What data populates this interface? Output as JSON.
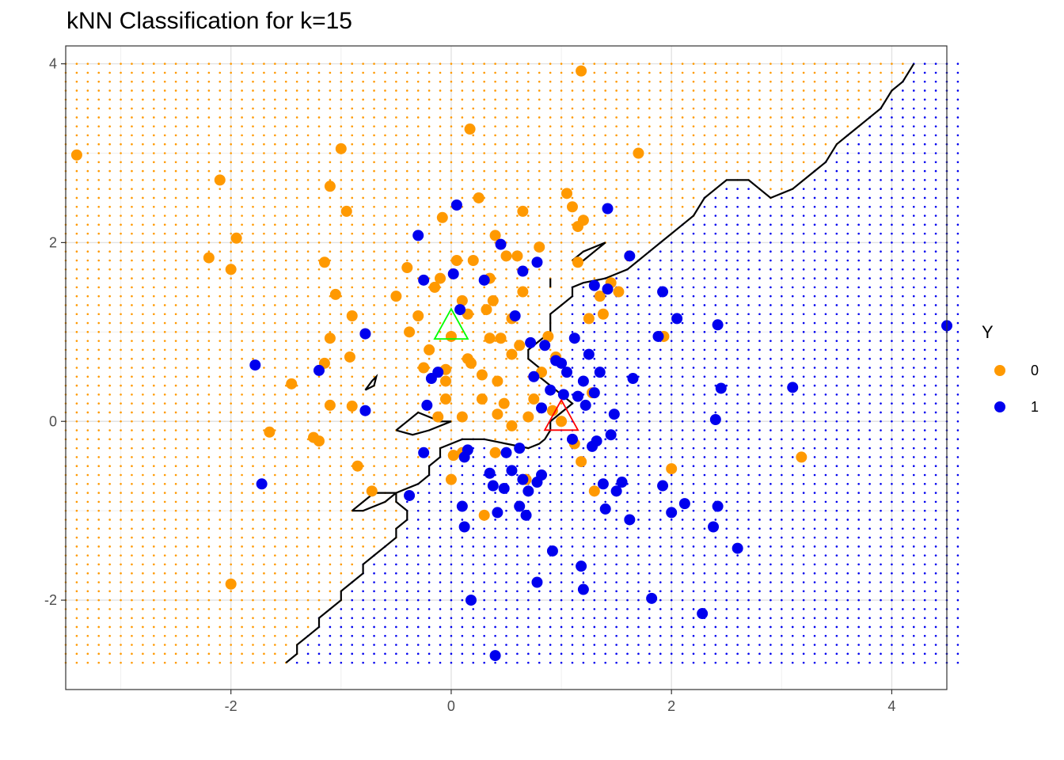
{
  "chart_data": {
    "type": "scatter",
    "title": "kNN Classification for k=15",
    "xlim": [
      -3.5,
      4.5
    ],
    "ylim": [
      -3.0,
      4.2
    ],
    "x_ticks": [
      -2,
      0,
      2,
      4
    ],
    "y_ticks": [
      -2,
      0,
      2,
      4
    ],
    "x_tick_labels": [
      "-2",
      "0",
      "2",
      "4"
    ],
    "y_tick_labels": [
      "-2",
      "0",
      "2",
      "4"
    ],
    "grid": true,
    "legend": {
      "title": "Y",
      "position": "right",
      "entries": [
        {
          "label": "0",
          "color": "#ff9900"
        },
        {
          "label": "1",
          "color": "#0000ee"
        }
      ]
    },
    "background_grid": {
      "x_range": [
        -3.5,
        4.6
      ],
      "y_range": [
        -2.7,
        4.0
      ],
      "step": 0.1,
      "class_0_color": "#ff9900",
      "class_1_color": "#0000ee"
    },
    "decision_boundary": [
      [
        -1.5,
        -2.7
      ],
      [
        -1.4,
        -2.6
      ],
      [
        -1.4,
        -2.5
      ],
      [
        -1.3,
        -2.4
      ],
      [
        -1.2,
        -2.3
      ],
      [
        -1.2,
        -2.2
      ],
      [
        -1.1,
        -2.1
      ],
      [
        -1.0,
        -2.0
      ],
      [
        -1.0,
        -1.9
      ],
      [
        -0.9,
        -1.8
      ],
      [
        -0.8,
        -1.7
      ],
      [
        -0.8,
        -1.6
      ],
      [
        -0.7,
        -1.5
      ],
      [
        -0.6,
        -1.4
      ],
      [
        -0.5,
        -1.3
      ],
      [
        -0.5,
        -1.2
      ],
      [
        -0.4,
        -1.1
      ],
      [
        -0.4,
        -1.0
      ],
      [
        -0.5,
        -0.9
      ],
      [
        -0.5,
        -0.8
      ],
      [
        -0.4,
        -0.75
      ],
      [
        -0.3,
        -0.7
      ],
      [
        -0.2,
        -0.6
      ],
      [
        -0.2,
        -0.5
      ],
      [
        -0.1,
        -0.4
      ],
      [
        -0.1,
        -0.3
      ],
      [
        0.0,
        -0.25
      ],
      [
        0.1,
        -0.2
      ],
      [
        0.3,
        -0.2
      ],
      [
        0.5,
        -0.25
      ],
      [
        0.7,
        -0.3
      ],
      [
        0.8,
        -0.25
      ],
      [
        0.85,
        -0.2
      ],
      [
        0.9,
        -0.1
      ],
      [
        0.9,
        0.0
      ],
      [
        1.0,
        0.1
      ],
      [
        1.1,
        0.2
      ],
      [
        1.0,
        0.3
      ],
      [
        0.9,
        0.4
      ],
      [
        0.8,
        0.5
      ],
      [
        0.8,
        0.6
      ],
      [
        0.7,
        0.7
      ],
      [
        0.7,
        0.8
      ],
      [
        0.8,
        0.9
      ],
      [
        0.9,
        1.0
      ],
      [
        0.9,
        1.2
      ],
      [
        1.0,
        1.3
      ],
      [
        1.1,
        1.4
      ],
      [
        1.1,
        1.5
      ],
      [
        1.2,
        1.55
      ],
      [
        1.4,
        1.6
      ],
      [
        1.6,
        1.7
      ],
      [
        1.7,
        1.8
      ],
      [
        1.8,
        1.9
      ],
      [
        1.9,
        2.0
      ],
      [
        2.0,
        2.1
      ],
      [
        2.1,
        2.2
      ],
      [
        2.2,
        2.3
      ],
      [
        2.3,
        2.5
      ],
      [
        2.4,
        2.6
      ],
      [
        2.5,
        2.7
      ],
      [
        2.7,
        2.7
      ],
      [
        2.8,
        2.6
      ],
      [
        2.9,
        2.5
      ],
      [
        3.1,
        2.6
      ],
      [
        3.2,
        2.7
      ],
      [
        3.3,
        2.8
      ],
      [
        3.4,
        2.9
      ],
      [
        3.5,
        3.1
      ],
      [
        3.6,
        3.2
      ],
      [
        3.7,
        3.3
      ],
      [
        3.8,
        3.4
      ],
      [
        3.9,
        3.5
      ],
      [
        4.0,
        3.7
      ],
      [
        4.1,
        3.8
      ],
      [
        4.2,
        4.0
      ]
    ],
    "boundary_islands": [
      [
        [
          -0.5,
          -0.1
        ],
        [
          -0.4,
          0.0
        ],
        [
          -0.3,
          0.1
        ],
        [
          -0.1,
          0.0
        ],
        [
          0.0,
          0.0
        ],
        [
          -0.2,
          -0.1
        ],
        [
          -0.35,
          -0.15
        ],
        [
          -0.5,
          -0.1
        ]
      ],
      [
        [
          -0.9,
          -1.0
        ],
        [
          -0.7,
          -0.8
        ],
        [
          -0.5,
          -0.8
        ],
        [
          -0.6,
          -0.9
        ],
        [
          -0.8,
          -1.0
        ],
        [
          -0.9,
          -1.0
        ]
      ],
      [
        [
          -0.78,
          0.35
        ],
        [
          -0.72,
          0.45
        ],
        [
          -0.68,
          0.5
        ],
        [
          -0.7,
          0.4
        ],
        [
          -0.78,
          0.35
        ]
      ],
      [
        [
          1.1,
          1.8
        ],
        [
          1.2,
          1.9
        ],
        [
          1.4,
          2.0
        ],
        [
          1.3,
          1.9
        ],
        [
          1.2,
          1.8
        ],
        [
          1.1,
          1.8
        ]
      ],
      [
        [
          0.9,
          1.5
        ],
        [
          0.9,
          1.6
        ]
      ]
    ],
    "series": [
      {
        "name": "0",
        "color": "#ff9900",
        "points": [
          [
            -3.4,
            2.98
          ],
          [
            -2.2,
            1.83
          ],
          [
            -2.1,
            2.7
          ],
          [
            -2.0,
            1.7
          ],
          [
            -1.95,
            2.05
          ],
          [
            -2.0,
            -1.82
          ],
          [
            -1.65,
            -0.12
          ],
          [
            -1.45,
            0.42
          ],
          [
            -1.25,
            -0.18
          ],
          [
            -1.2,
            -0.22
          ],
          [
            -1.15,
            1.78
          ],
          [
            -1.1,
            2.63
          ],
          [
            -1.1,
            0.93
          ],
          [
            -1.1,
            0.18
          ],
          [
            -1.15,
            0.65
          ],
          [
            -1.05,
            1.42
          ],
          [
            -1.0,
            3.05
          ],
          [
            -0.95,
            2.35
          ],
          [
            -0.9,
            1.18
          ],
          [
            -0.92,
            0.72
          ],
          [
            -0.9,
            0.17
          ],
          [
            -0.85,
            -0.5
          ],
          [
            -0.78,
            0.98
          ],
          [
            -0.72,
            -0.78
          ],
          [
            -0.5,
            1.4
          ],
          [
            -0.4,
            1.72
          ],
          [
            -0.38,
            1.0
          ],
          [
            -0.3,
            1.18
          ],
          [
            -0.25,
            0.6
          ],
          [
            -0.2,
            0.8
          ],
          [
            -0.15,
            1.5
          ],
          [
            -0.1,
            1.6
          ],
          [
            -0.08,
            2.28
          ],
          [
            -0.05,
            0.25
          ],
          [
            -0.05,
            0.45
          ],
          [
            0.05,
            1.8
          ],
          [
            0.1,
            1.35
          ],
          [
            0.15,
            1.2
          ],
          [
            0.15,
            0.7
          ],
          [
            0.2,
            1.8
          ],
          [
            0.25,
            2.5
          ],
          [
            0.28,
            0.52
          ],
          [
            0.32,
            1.25
          ],
          [
            0.35,
            1.6
          ],
          [
            0.38,
            1.35
          ],
          [
            0.4,
            2.08
          ],
          [
            0.45,
            0.93
          ],
          [
            0.5,
            1.85
          ],
          [
            0.55,
            0.75
          ],
          [
            0.6,
            1.85
          ],
          [
            0.65,
            1.45
          ],
          [
            0.65,
            2.35
          ],
          [
            0.7,
            0.05
          ],
          [
            0.75,
            0.25
          ],
          [
            0.8,
            1.95
          ],
          [
            0.82,
            0.55
          ],
          [
            0.88,
            0.95
          ],
          [
            0.95,
            0.72
          ],
          [
            1.0,
            0.0
          ],
          [
            1.05,
            2.55
          ],
          [
            1.1,
            2.4
          ],
          [
            1.15,
            2.18
          ],
          [
            1.15,
            1.78
          ],
          [
            1.2,
            2.25
          ],
          [
            1.25,
            1.15
          ],
          [
            1.28,
            0.32
          ],
          [
            1.3,
            -0.78
          ],
          [
            1.35,
            1.4
          ],
          [
            1.38,
            1.2
          ],
          [
            1.45,
            1.55
          ],
          [
            1.52,
            1.45
          ],
          [
            1.18,
            3.92
          ],
          [
            1.7,
            3.0
          ],
          [
            0.17,
            3.27
          ],
          [
            1.93,
            0.95
          ],
          [
            2.0,
            -0.53
          ],
          [
            3.18,
            -0.4
          ],
          [
            0.4,
            -0.35
          ],
          [
            0.3,
            -1.05
          ],
          [
            0.0,
            -0.65
          ],
          [
            0.02,
            -0.38
          ],
          [
            0.1,
            -0.35
          ],
          [
            0.68,
            -0.65
          ],
          [
            1.18,
            -0.45
          ],
          [
            1.12,
            -0.25
          ],
          [
            0.0,
            0.95
          ],
          [
            0.55,
            1.15
          ],
          [
            0.62,
            0.85
          ],
          [
            -0.12,
            0.05
          ],
          [
            0.1,
            0.05
          ],
          [
            0.42,
            0.08
          ],
          [
            0.48,
            0.2
          ],
          [
            0.55,
            -0.05
          ],
          [
            0.92,
            0.12
          ],
          [
            0.35,
            0.93
          ],
          [
            0.18,
            0.65
          ],
          [
            0.42,
            0.45
          ],
          [
            -0.05,
            0.58
          ],
          [
            0.28,
            0.25
          ]
        ]
      },
      {
        "name": "1",
        "color": "#0000ee",
        "points": [
          [
            -1.78,
            0.63
          ],
          [
            -1.72,
            -0.7
          ],
          [
            -1.2,
            0.57
          ],
          [
            -0.78,
            0.98
          ],
          [
            -0.78,
            0.12
          ],
          [
            -0.38,
            -0.83
          ],
          [
            -0.3,
            2.08
          ],
          [
            -0.25,
            -0.35
          ],
          [
            -0.22,
            0.18
          ],
          [
            -0.18,
            0.48
          ],
          [
            -0.12,
            0.55
          ],
          [
            0.02,
            1.65
          ],
          [
            0.05,
            2.42
          ],
          [
            0.08,
            1.25
          ],
          [
            0.12,
            -0.4
          ],
          [
            0.15,
            -0.32
          ],
          [
            0.18,
            -2.0
          ],
          [
            0.1,
            -0.95
          ],
          [
            0.12,
            -1.18
          ],
          [
            0.3,
            1.58
          ],
          [
            0.35,
            -0.58
          ],
          [
            0.38,
            -0.72
          ],
          [
            0.4,
            -2.62
          ],
          [
            0.42,
            -1.02
          ],
          [
            0.45,
            1.98
          ],
          [
            0.48,
            -0.75
          ],
          [
            0.5,
            -0.35
          ],
          [
            0.55,
            -0.55
          ],
          [
            0.58,
            1.18
          ],
          [
            0.62,
            -0.95
          ],
          [
            0.65,
            -0.65
          ],
          [
            0.68,
            -1.05
          ],
          [
            0.7,
            -0.78
          ],
          [
            0.72,
            0.88
          ],
          [
            0.75,
            0.5
          ],
          [
            0.78,
            -1.8
          ],
          [
            0.78,
            -0.68
          ],
          [
            0.82,
            0.15
          ],
          [
            0.82,
            -0.6
          ],
          [
            0.85,
            0.85
          ],
          [
            0.9,
            0.35
          ],
          [
            0.92,
            -1.45
          ],
          [
            0.95,
            0.68
          ],
          [
            1.0,
            0.65
          ],
          [
            1.02,
            0.3
          ],
          [
            1.05,
            0.55
          ],
          [
            1.1,
            -0.2
          ],
          [
            1.12,
            0.93
          ],
          [
            1.18,
            -1.62
          ],
          [
            1.2,
            -1.88
          ],
          [
            1.22,
            0.18
          ],
          [
            1.25,
            0.75
          ],
          [
            1.28,
            -0.28
          ],
          [
            1.32,
            -0.22
          ],
          [
            1.35,
            0.55
          ],
          [
            1.38,
            -0.7
          ],
          [
            1.4,
            -0.98
          ],
          [
            1.42,
            1.48
          ],
          [
            1.42,
            2.38
          ],
          [
            1.45,
            -0.15
          ],
          [
            1.5,
            -0.78
          ],
          [
            1.55,
            -0.68
          ],
          [
            1.62,
            -1.1
          ],
          [
            1.65,
            0.48
          ],
          [
            1.82,
            -1.98
          ],
          [
            1.88,
            0.95
          ],
          [
            1.92,
            1.45
          ],
          [
            1.92,
            -0.72
          ],
          [
            2.05,
            1.15
          ],
          [
            2.0,
            -1.02
          ],
          [
            2.12,
            -0.92
          ],
          [
            2.28,
            -2.15
          ],
          [
            2.38,
            -1.18
          ],
          [
            2.4,
            0.02
          ],
          [
            2.42,
            1.08
          ],
          [
            2.42,
            -0.95
          ],
          [
            2.45,
            0.37
          ],
          [
            2.6,
            -1.42
          ],
          [
            3.1,
            0.38
          ],
          [
            4.5,
            1.07
          ],
          [
            1.3,
            1.52
          ],
          [
            1.62,
            1.85
          ],
          [
            0.65,
            1.68
          ],
          [
            0.78,
            1.78
          ],
          [
            -0.25,
            1.58
          ],
          [
            1.48,
            0.08
          ],
          [
            1.3,
            0.32
          ],
          [
            1.2,
            0.45
          ],
          [
            1.15,
            0.28
          ],
          [
            0.62,
            -0.3
          ]
        ]
      }
    ],
    "markers": [
      {
        "shape": "triangle",
        "x": 0.0,
        "y": 1.05,
        "color": "#00ff00"
      },
      {
        "shape": "triangle",
        "x": 1.0,
        "y": 0.03,
        "color": "#ff0000"
      }
    ]
  }
}
